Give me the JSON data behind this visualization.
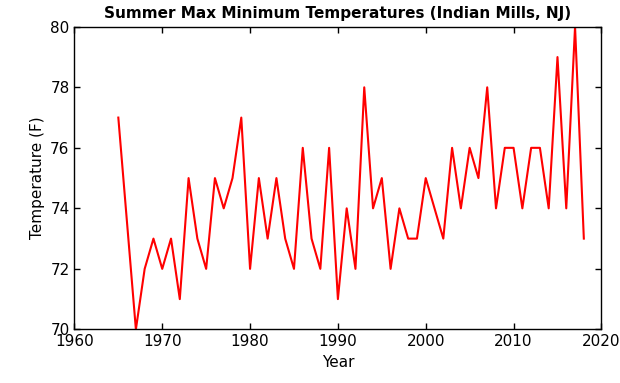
{
  "title": "Summer Max Minimum Temperatures (Indian Mills, NJ)",
  "xlabel": "Year",
  "ylabel": "Temperature (F)",
  "xlim": [
    1960,
    2020
  ],
  "ylim": [
    70,
    80
  ],
  "line_color": "red",
  "line_width": 1.5,
  "years": [
    1965,
    1967,
    1968,
    1969,
    1970,
    1971,
    1972,
    1973,
    1974,
    1975,
    1976,
    1977,
    1978,
    1979,
    1980,
    1981,
    1982,
    1983,
    1984,
    1985,
    1986,
    1987,
    1988,
    1989,
    1990,
    1991,
    1992,
    1993,
    1994,
    1995,
    1996,
    1997,
    1998,
    1999,
    2000,
    2001,
    2002,
    2003,
    2004,
    2005,
    2006,
    2007,
    2008,
    2009,
    2010,
    2011,
    2012,
    2013,
    2014,
    2015,
    2016,
    2017,
    2018
  ],
  "temps": [
    77,
    70,
    72,
    73,
    72,
    73,
    71,
    75,
    73,
    72,
    75,
    74,
    75,
    77,
    72,
    75,
    73,
    75,
    73,
    72,
    76,
    73,
    72,
    76,
    71,
    74,
    72,
    78,
    74,
    75,
    72,
    74,
    73,
    73,
    75,
    74,
    73,
    76,
    74,
    76,
    75,
    78,
    74,
    76,
    76,
    74,
    76,
    76,
    74,
    79,
    74,
    80,
    73
  ],
  "xticks": [
    1960,
    1970,
    1980,
    1990,
    2000,
    2010,
    2020
  ],
  "yticks": [
    70,
    72,
    74,
    76,
    78,
    80
  ],
  "title_fontsize": 11,
  "label_fontsize": 11,
  "tick_fontsize": 11
}
